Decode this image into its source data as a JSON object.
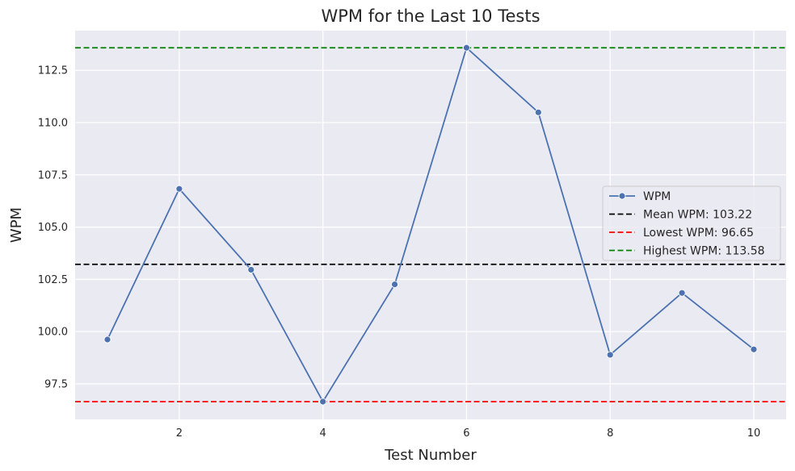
{
  "chart_data": {
    "type": "line",
    "title": "WPM for the Last 10 Tests",
    "xlabel": "Test Number",
    "ylabel": "WPM",
    "x": [
      1,
      2,
      3,
      4,
      5,
      6,
      7,
      8,
      9,
      10
    ],
    "series": [
      {
        "name": "WPM",
        "color": "#4c72b0",
        "values": [
          99.62,
          106.83,
          102.96,
          96.65,
          102.26,
          113.58,
          110.49,
          98.89,
          101.85,
          99.15
        ]
      }
    ],
    "reference_lines": [
      {
        "name": "Mean WPM: 103.22",
        "value": 103.22,
        "color": "#000000",
        "style": "dashed"
      },
      {
        "name": "Lowest WPM: 96.65",
        "value": 96.65,
        "color": "#ff0000",
        "style": "dashed"
      },
      {
        "name": "Highest WPM: 113.58",
        "value": 113.58,
        "color": "#008000",
        "style": "dashed"
      }
    ],
    "xlim": [
      0.55,
      10.45
    ],
    "ylim": [
      95.8,
      114.4
    ],
    "xticks": [
      2,
      4,
      6,
      8,
      10
    ],
    "xtick_labels": [
      "2",
      "4",
      "6",
      "8",
      "10"
    ],
    "yticks": [
      97.5,
      100.0,
      102.5,
      105.0,
      107.5,
      110.0,
      112.5
    ],
    "ytick_labels": [
      "97.5",
      "100.0",
      "102.5",
      "105.0",
      "107.5",
      "110.0",
      "112.5"
    ],
    "grid": true,
    "legend_position": "center-right",
    "plot_background": "#eaeaf2",
    "grid_color": "#ffffff"
  }
}
